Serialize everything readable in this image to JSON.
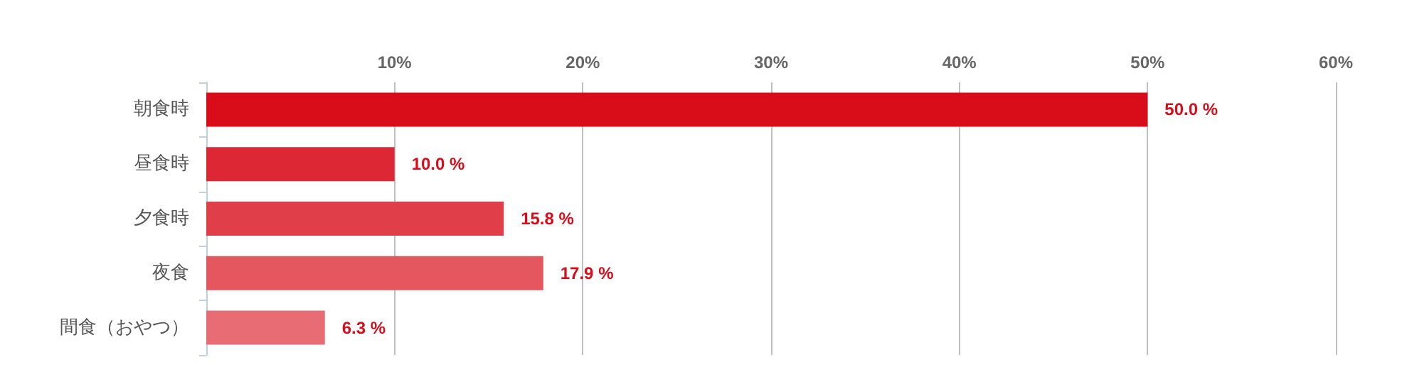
{
  "chart_data": {
    "type": "bar",
    "orientation": "horizontal",
    "categories": [
      "朝食時",
      "昼食時",
      "夕食時",
      "夜食",
      "間食（おやつ）"
    ],
    "values": [
      50.0,
      10.0,
      15.8,
      17.9,
      6.3
    ],
    "colors": [
      "#d90c19",
      "#dd2734",
      "#e03e48",
      "#e4575f",
      "#e86c73"
    ],
    "value_labels": [
      "50.0 %",
      "10.0 %",
      "15.8 %",
      "17.9 %",
      "6.3 %"
    ],
    "xlim": [
      0,
      60
    ],
    "xticks": [
      {
        "value": 0,
        "label": null
      },
      {
        "value": 10,
        "label": "10%"
      },
      {
        "value": 20,
        "label": "20%"
      },
      {
        "value": 30,
        "label": "30%"
      },
      {
        "value": 40,
        "label": "40%"
      },
      {
        "value": 50,
        "label": "50%"
      },
      {
        "value": 60,
        "label": "60%"
      }
    ],
    "grid": "x"
  }
}
